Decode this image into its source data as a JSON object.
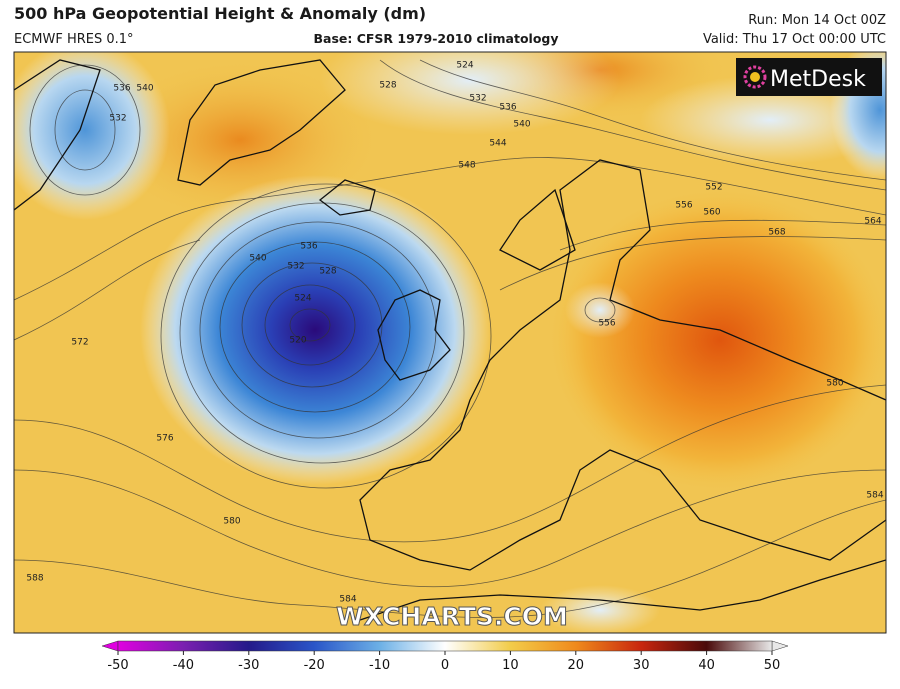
{
  "header": {
    "title": "500 hPa Geopotential Height & Anomaly (dm)",
    "model": "ECMWF HRES 0.1°",
    "base": "Base: CFSR 1979-2010 climatology",
    "run": "Run: Mon 14 Oct 00Z",
    "valid": "Valid: Thu 17 Oct 00:00 UTC"
  },
  "logo": "MetDesk",
  "watermark": "WXCHARTS.COM",
  "contour_labels": [
    532,
    540,
    536,
    528,
    524,
    532,
    536,
    540,
    544,
    548,
    552,
    556,
    560,
    564,
    568,
    536,
    540,
    532,
    528,
    524,
    520,
    556,
    572,
    576,
    580,
    580,
    584,
    588,
    584
  ],
  "colorbar": {
    "lim": [
      -50,
      50
    ],
    "ticks": [
      -50,
      -40,
      -30,
      -20,
      -10,
      0,
      10,
      20,
      30,
      40,
      50
    ]
  }
}
